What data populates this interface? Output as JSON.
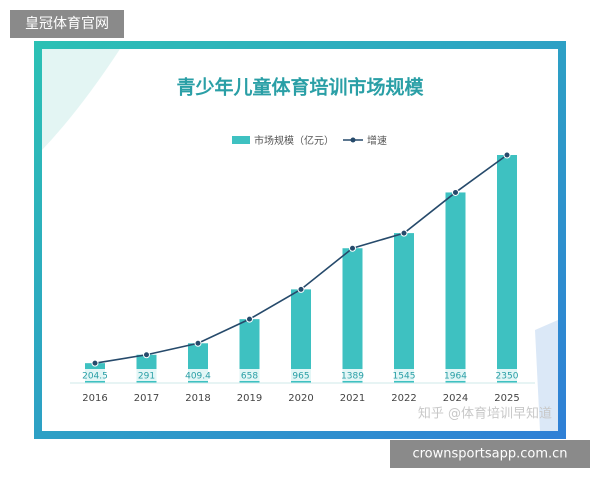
{
  "chart_data": {
    "type": "bar",
    "title": "青少年儿童体育培训市场规模",
    "categories": [
      "2016",
      "2017",
      "2018",
      "2019",
      "2020",
      "2021",
      "2022",
      "2024",
      "2025"
    ],
    "series": [
      {
        "name": "市场规模（亿元）",
        "color": "#3ec1c1",
        "values": [
          204.5,
          291,
          409.4,
          658,
          965,
          1389,
          1545,
          1964,
          2350
        ]
      },
      {
        "name": "增速",
        "type": "line",
        "color": "#264a6b",
        "values": [
          204.5,
          291,
          409.4,
          658,
          965,
          1389,
          1545,
          1964,
          2350
        ]
      }
    ],
    "legend": "top"
  },
  "overlay": {
    "site_label": "皇冠体育官网",
    "watermark": "知乎 @体育培训早知道",
    "url": "crownsportsapp.com.cn"
  }
}
